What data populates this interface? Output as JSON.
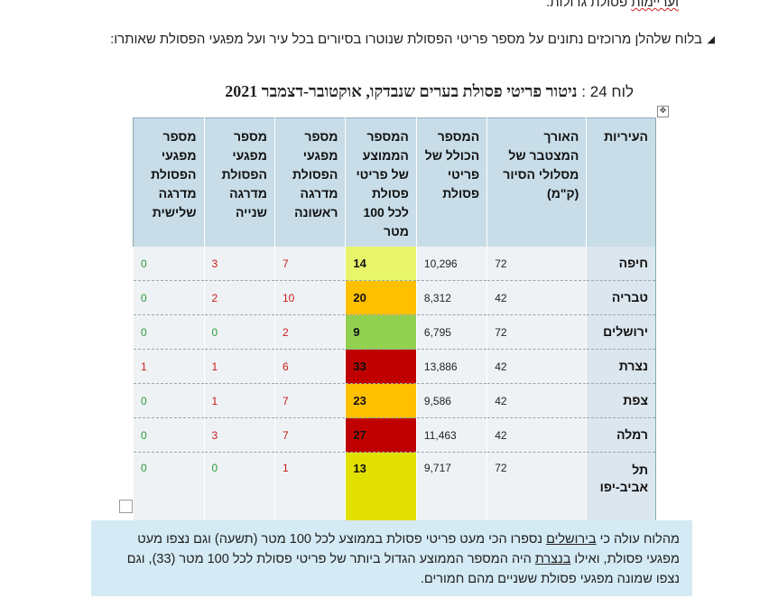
{
  "top_line": {
    "underlined": "ועריימות",
    "rest": " פסולת גדולות."
  },
  "bullet_text": "בלוח שלהלן מרוכזים נתונים על מספר פריטי הפסולת שנוטרו בסיורים בכל עיר ועל מפגעי הפסולת שאותרו:",
  "caption": {
    "label": "לוח 24 :",
    "title": "ניטור פריטי פסולת בערים שנבדקו, אוקטובר-דצמבר 2021"
  },
  "table": {
    "headers": {
      "city": "העיריות",
      "length": "האורך המצטבר של מסלולי הסיור (ק\"מ)",
      "total": "המספר הכולל של פריטי פסולת",
      "avg": "המספר הממוצע של פריטי פסולת לכל 100 מטר",
      "h1": "מספר מפגעי הפסולת מדרגה ראשונה",
      "h2": "מספר מפגעי הפסולת מדרגה שנייה",
      "h3": "מספר מפגעי הפסולת מדרגה שלישית"
    },
    "rows": [
      {
        "city": "חיפה",
        "length": "72",
        "total": "10,296",
        "avg": "14",
        "avg_color": "#e8f56a",
        "h1": "7",
        "h2": "3",
        "h3": "0"
      },
      {
        "city": "טבריה",
        "length": "42",
        "total": "8,312",
        "avg": "20",
        "avg_color": "#ffc000",
        "h1": "10",
        "h2": "2",
        "h3": "0"
      },
      {
        "city": "ירושלים",
        "length": "72",
        "total": "6,795",
        "avg": "9",
        "avg_color": "#92d050",
        "h1": "2",
        "h2": "0",
        "h3": "0"
      },
      {
        "city": "נצרת",
        "length": "42",
        "total": "13,886",
        "avg": "33",
        "avg_color": "#c00000",
        "h1": "6",
        "h2": "1",
        "h3": "1"
      },
      {
        "city": "צפת",
        "length": "42",
        "total": "9,586",
        "avg": "23",
        "avg_color": "#ffc000",
        "h1": "7",
        "h2": "1",
        "h3": "0"
      },
      {
        "city": "רמלה",
        "length": "42",
        "total": "11,463",
        "avg": "27",
        "avg_color": "#c00000",
        "h1": "7",
        "h2": "3",
        "h3": "0"
      },
      {
        "city": "תל אביב-יפו",
        "length": "72",
        "total": "9,717",
        "avg": "13",
        "avg_color": "#e2e000",
        "h1": "1",
        "h2": "0",
        "h3": "0"
      }
    ]
  },
  "note": {
    "p1": "מהלוח עולה כי ",
    "u1": "בירושלים",
    "p2": " נספרו הכי מעט פריטי פסולת בממוצע לכל 100 מטר (תשעה) וגם נצפו מעט מפגעי פסולת, ואילו ",
    "u2": "בנצרת",
    "p3": " היה המספר הממוצע הגדול ביותר של פריטי פסולת לכל 100 מטר (33), וגם נצפו שמונה מפגעי פסולת ששניים מהם חמורים."
  }
}
